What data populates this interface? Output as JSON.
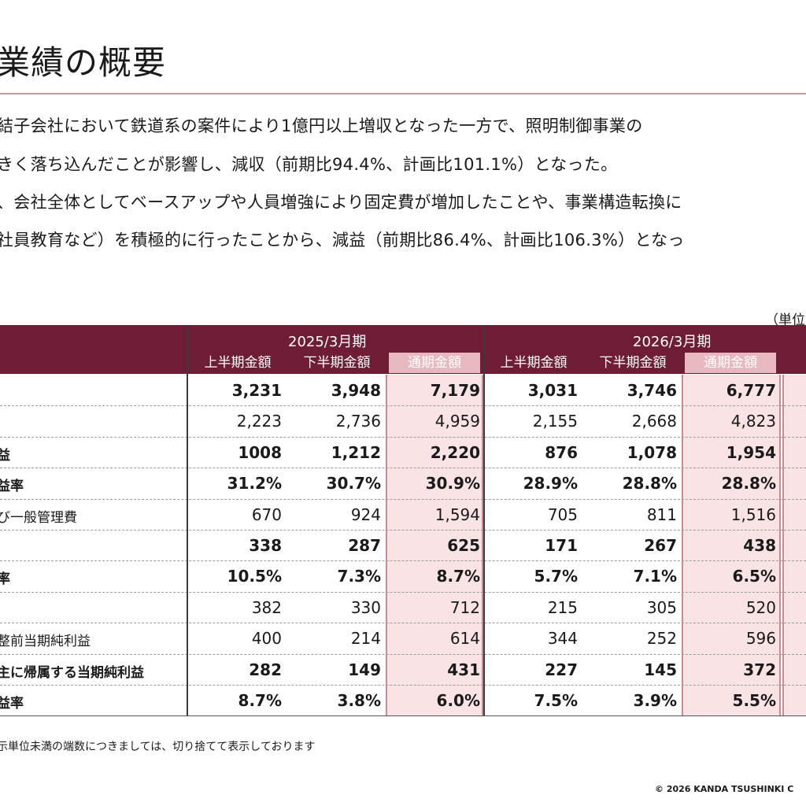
{
  "title": "業績の概要",
  "paragraph": [
    "結子会社において鉄道系の案件により1億円以上増収となった一方で、照明制御事業の",
    "きく落ち込んだことが影響し、減収（前期比94.4%、計画比101.1%）となった。",
    "、会社全体としてベースアップや人員増強により固定費が増加したことや、事業構造転換に",
    "社員教育など）を積極的に行ったことから、減益（前期比86.4%、計画比106.3%）となっ"
  ],
  "unit_note": "（単位",
  "table": {
    "periods": [
      "2025/3月期",
      "2026/3月期"
    ],
    "column_headers": [
      "上半期金額",
      "下半期金額",
      "通期金額",
      "上半期金額",
      "下半期金額",
      "通期金額"
    ],
    "rows": [
      {
        "label": "",
        "bold": true,
        "values": [
          "3,231",
          "3,948",
          "7,179",
          "3,031",
          "3,746",
          "6,777"
        ]
      },
      {
        "label": "",
        "bold": false,
        "values": [
          "2,223",
          "2,736",
          "4,959",
          "2,155",
          "2,668",
          "4,823"
        ]
      },
      {
        "label": "益",
        "bold": true,
        "values": [
          "1008",
          "1,212",
          "2,220",
          "876",
          "1,078",
          "1,954"
        ]
      },
      {
        "label": "益率",
        "bold": true,
        "values": [
          "31.2%",
          "30.7%",
          "30.9%",
          "28.9%",
          "28.8%",
          "28.8%"
        ]
      },
      {
        "label": "び一般管理費",
        "bold": false,
        "values": [
          "670",
          "924",
          "1,594",
          "705",
          "811",
          "1,516"
        ]
      },
      {
        "label": "",
        "bold": true,
        "values": [
          "338",
          "287",
          "625",
          "171",
          "267",
          "438"
        ]
      },
      {
        "label": "率",
        "bold": true,
        "values": [
          "10.5%",
          "7.3%",
          "8.7%",
          "5.7%",
          "7.1%",
          "6.5%"
        ]
      },
      {
        "label": "",
        "bold": false,
        "values": [
          "382",
          "330",
          "712",
          "215",
          "305",
          "520"
        ]
      },
      {
        "label": "整前当期純利益",
        "bold": false,
        "values": [
          "400",
          "214",
          "614",
          "344",
          "252",
          "596"
        ]
      },
      {
        "label": "主に帰属する当期純利益",
        "bold": true,
        "values": [
          "282",
          "149",
          "431",
          "227",
          "145",
          "372"
        ]
      },
      {
        "label": "益率",
        "bold": true,
        "values": [
          "8.7%",
          "3.8%",
          "6.0%",
          "7.5%",
          "3.9%",
          "5.5%"
        ]
      }
    ]
  },
  "footnote": "示単位未満の端数につきましては、切り捨てて表示しております",
  "copyright": "© 2026 KANDA TSUSHINKI C",
  "colors": {
    "header_bg": "#6e1d35",
    "full_year_bg": "#f9e3e5",
    "full_year_border": "#cc8a93",
    "title_rule": "#c9969a"
  }
}
